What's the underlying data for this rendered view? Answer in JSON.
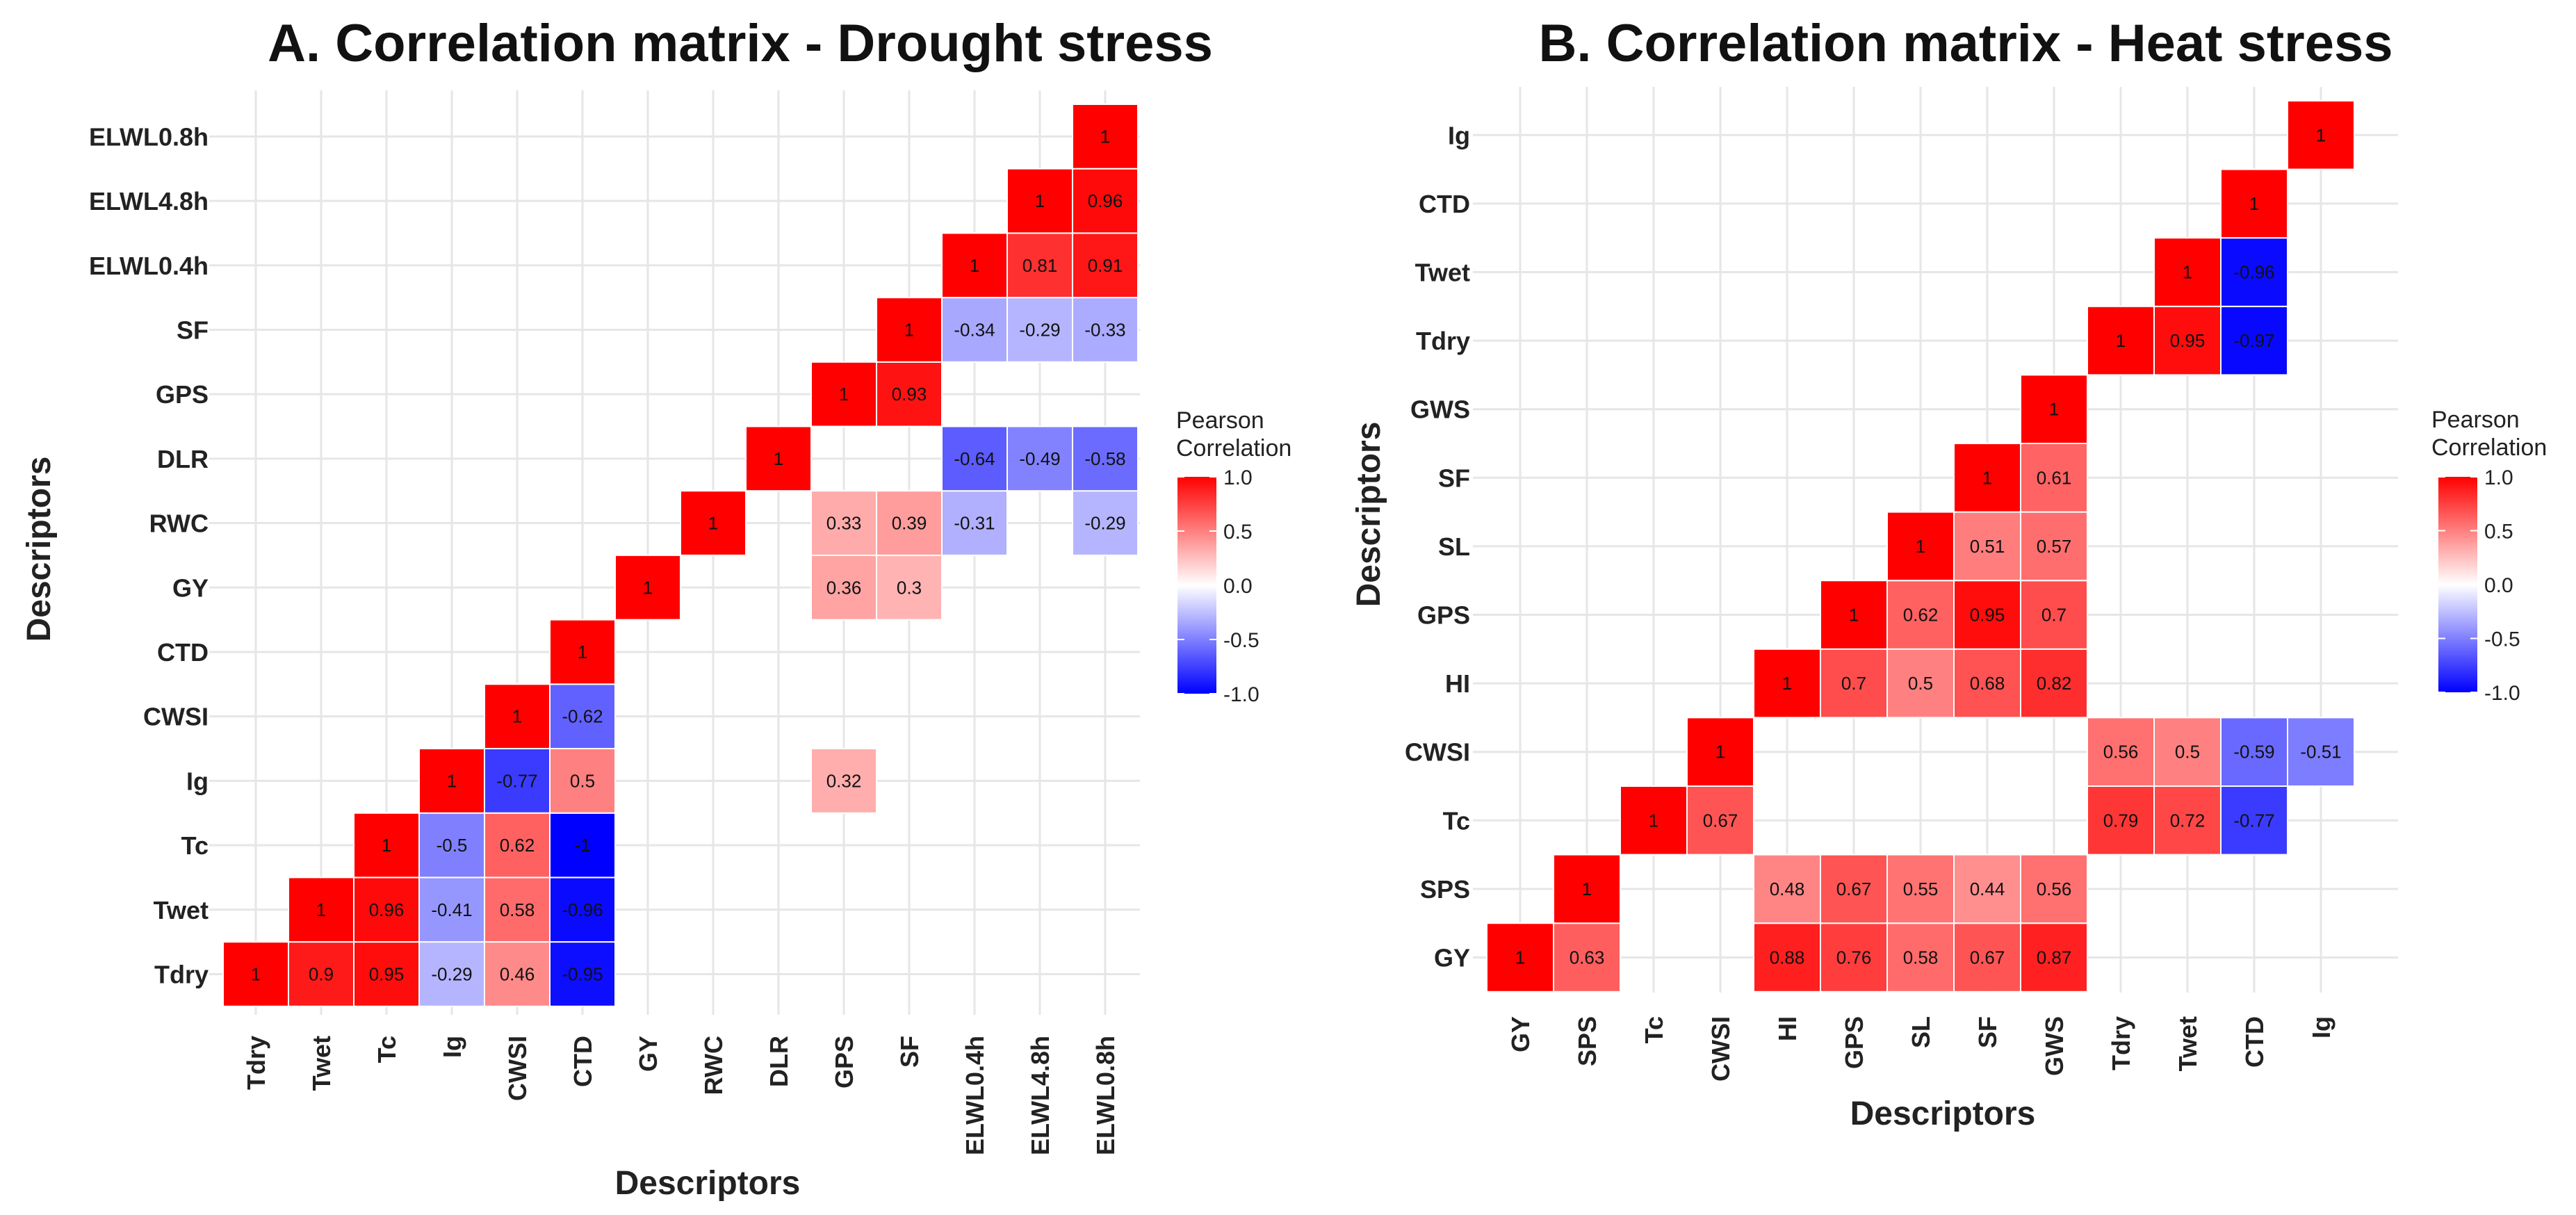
{
  "chart_data": [
    {
      "type": "heatmap",
      "title": "A. Correlation matrix - Drought stress",
      "xlabel": "Descriptors",
      "ylabel": "Descriptors",
      "legend": {
        "title_line1": "Pearson",
        "title_line2": "Correlation",
        "ticks": [
          1.0,
          0.5,
          0.0,
          -0.5,
          -1.0
        ],
        "tick_labels": [
          "1.0",
          "0.5",
          "0.0",
          "-0.5",
          "-1.0"
        ],
        "placement": "right"
      },
      "color_scale": {
        "low": "#0000ff",
        "mid": "#ffffff",
        "high": "#ff0000",
        "range": [
          -1,
          1
        ]
      },
      "variables": [
        "Tdry",
        "Twet",
        "Tc",
        "Ig",
        "CWSI",
        "CTD",
        "GY",
        "RWC",
        "DLR",
        "GPS",
        "SF",
        "ELWL0.4h",
        "ELWL4.8h",
        "ELWL0.8h"
      ],
      "cells": [
        {
          "x": "Tdry",
          "y": "Tdry",
          "value": 1,
          "label": "1"
        },
        {
          "x": "Twet",
          "y": "Tdry",
          "value": 0.9,
          "label": "0.9"
        },
        {
          "x": "Tc",
          "y": "Tdry",
          "value": 0.95,
          "label": "0.95"
        },
        {
          "x": "Ig",
          "y": "Tdry",
          "value": -0.29,
          "label": "-0.29"
        },
        {
          "x": "CWSI",
          "y": "Tdry",
          "value": 0.46,
          "label": "0.46"
        },
        {
          "x": "CTD",
          "y": "Tdry",
          "value": -0.95,
          "label": "-0.95"
        },
        {
          "x": "Twet",
          "y": "Twet",
          "value": 1,
          "label": "1"
        },
        {
          "x": "Tc",
          "y": "Twet",
          "value": 0.96,
          "label": "0.96"
        },
        {
          "x": "Ig",
          "y": "Twet",
          "value": -0.41,
          "label": "-0.41"
        },
        {
          "x": "CWSI",
          "y": "Twet",
          "value": 0.58,
          "label": "0.58"
        },
        {
          "x": "CTD",
          "y": "Twet",
          "value": -0.96,
          "label": "-0.96"
        },
        {
          "x": "Tc",
          "y": "Tc",
          "value": 1,
          "label": "1"
        },
        {
          "x": "Ig",
          "y": "Tc",
          "value": -0.5,
          "label": "-0.5"
        },
        {
          "x": "CWSI",
          "y": "Tc",
          "value": 0.62,
          "label": "0.62"
        },
        {
          "x": "CTD",
          "y": "Tc",
          "value": -1,
          "label": "-1"
        },
        {
          "x": "Ig",
          "y": "Ig",
          "value": 1,
          "label": "1"
        },
        {
          "x": "CWSI",
          "y": "Ig",
          "value": -0.77,
          "label": "-0.77"
        },
        {
          "x": "CTD",
          "y": "Ig",
          "value": 0.5,
          "label": "0.5"
        },
        {
          "x": "GPS",
          "y": "Ig",
          "value": 0.32,
          "label": "0.32"
        },
        {
          "x": "CWSI",
          "y": "CWSI",
          "value": 1,
          "label": "1"
        },
        {
          "x": "CTD",
          "y": "CWSI",
          "value": -0.62,
          "label": "-0.62"
        },
        {
          "x": "CTD",
          "y": "CTD",
          "value": 1,
          "label": "1"
        },
        {
          "x": "GY",
          "y": "GY",
          "value": 1,
          "label": "1"
        },
        {
          "x": "GPS",
          "y": "GY",
          "value": 0.36,
          "label": "0.36"
        },
        {
          "x": "SF",
          "y": "GY",
          "value": 0.3,
          "label": "0.3"
        },
        {
          "x": "RWC",
          "y": "RWC",
          "value": 1,
          "label": "1"
        },
        {
          "x": "GPS",
          "y": "RWC",
          "value": 0.33,
          "label": "0.33"
        },
        {
          "x": "SF",
          "y": "RWC",
          "value": 0.39,
          "label": "0.39"
        },
        {
          "x": "ELWL0.4h",
          "y": "RWC",
          "value": -0.31,
          "label": "-0.31"
        },
        {
          "x": "ELWL0.8h",
          "y": "RWC",
          "value": -0.29,
          "label": "-0.29"
        },
        {
          "x": "DLR",
          "y": "DLR",
          "value": 1,
          "label": "1"
        },
        {
          "x": "ELWL0.4h",
          "y": "DLR",
          "value": -0.64,
          "label": "-0.64"
        },
        {
          "x": "ELWL4.8h",
          "y": "DLR",
          "value": -0.49,
          "label": "-0.49"
        },
        {
          "x": "ELWL0.8h",
          "y": "DLR",
          "value": -0.58,
          "label": "-0.58"
        },
        {
          "x": "GPS",
          "y": "GPS",
          "value": 1,
          "label": "1"
        },
        {
          "x": "SF",
          "y": "GPS",
          "value": 0.93,
          "label": "0.93"
        },
        {
          "x": "SF",
          "y": "SF",
          "value": 1,
          "label": "1"
        },
        {
          "x": "ELWL0.4h",
          "y": "SF",
          "value": -0.34,
          "label": "-0.34"
        },
        {
          "x": "ELWL4.8h",
          "y": "SF",
          "value": -0.29,
          "label": "-0.29"
        },
        {
          "x": "ELWL0.8h",
          "y": "SF",
          "value": -0.33,
          "label": "-0.33"
        },
        {
          "x": "ELWL0.4h",
          "y": "ELWL0.4h",
          "value": 1,
          "label": "1"
        },
        {
          "x": "ELWL4.8h",
          "y": "ELWL0.4h",
          "value": 0.81,
          "label": "0.81"
        },
        {
          "x": "ELWL0.8h",
          "y": "ELWL0.4h",
          "value": 0.91,
          "label": "0.91"
        },
        {
          "x": "ELWL4.8h",
          "y": "ELWL4.8h",
          "value": 1,
          "label": "1"
        },
        {
          "x": "ELWL0.8h",
          "y": "ELWL4.8h",
          "value": 0.96,
          "label": "0.96"
        },
        {
          "x": "ELWL0.8h",
          "y": "ELWL0.8h",
          "value": 1,
          "label": "1"
        }
      ]
    },
    {
      "type": "heatmap",
      "title": "B. Correlation matrix - Heat stress",
      "xlabel": "Descriptors",
      "ylabel": "Descriptors",
      "legend": {
        "title_line1": "Pearson",
        "title_line2": "Correlation",
        "ticks": [
          1.0,
          0.5,
          0.0,
          -0.5,
          -1.0
        ],
        "tick_labels": [
          "1.0",
          "0.5",
          "0.0",
          "-0.5",
          "-1.0"
        ],
        "placement": "right"
      },
      "color_scale": {
        "low": "#0000ff",
        "mid": "#ffffff",
        "high": "#ff0000",
        "range": [
          -1,
          1
        ]
      },
      "variables": [
        "GY",
        "SPS",
        "Tc",
        "CWSI",
        "HI",
        "GPS",
        "SL",
        "SF",
        "GWS",
        "Tdry",
        "Twet",
        "CTD",
        "Ig"
      ],
      "cells": [
        {
          "x": "GY",
          "y": "GY",
          "value": 1,
          "label": "1"
        },
        {
          "x": "SPS",
          "y": "GY",
          "value": 0.63,
          "label": "0.63"
        },
        {
          "x": "HI",
          "y": "GY",
          "value": 0.88,
          "label": "0.88"
        },
        {
          "x": "GPS",
          "y": "GY",
          "value": 0.76,
          "label": "0.76"
        },
        {
          "x": "SL",
          "y": "GY",
          "value": 0.58,
          "label": "0.58"
        },
        {
          "x": "SF",
          "y": "GY",
          "value": 0.67,
          "label": "0.67"
        },
        {
          "x": "GWS",
          "y": "GY",
          "value": 0.87,
          "label": "0.87"
        },
        {
          "x": "SPS",
          "y": "SPS",
          "value": 1,
          "label": "1"
        },
        {
          "x": "HI",
          "y": "SPS",
          "value": 0.48,
          "label": "0.48"
        },
        {
          "x": "GPS",
          "y": "SPS",
          "value": 0.67,
          "label": "0.67"
        },
        {
          "x": "SL",
          "y": "SPS",
          "value": 0.55,
          "label": "0.55"
        },
        {
          "x": "SF",
          "y": "SPS",
          "value": 0.44,
          "label": "0.44"
        },
        {
          "x": "GWS",
          "y": "SPS",
          "value": 0.56,
          "label": "0.56"
        },
        {
          "x": "Tc",
          "y": "Tc",
          "value": 1,
          "label": "1"
        },
        {
          "x": "CWSI",
          "y": "Tc",
          "value": 0.67,
          "label": "0.67"
        },
        {
          "x": "Tdry",
          "y": "Tc",
          "value": 0.79,
          "label": "0.79"
        },
        {
          "x": "Twet",
          "y": "Tc",
          "value": 0.72,
          "label": "0.72"
        },
        {
          "x": "CTD",
          "y": "Tc",
          "value": -0.77,
          "label": "-0.77"
        },
        {
          "x": "CWSI",
          "y": "CWSI",
          "value": 1,
          "label": "1"
        },
        {
          "x": "Tdry",
          "y": "CWSI",
          "value": 0.56,
          "label": "0.56"
        },
        {
          "x": "Twet",
          "y": "CWSI",
          "value": 0.5,
          "label": "0.5"
        },
        {
          "x": "CTD",
          "y": "CWSI",
          "value": -0.59,
          "label": "-0.59"
        },
        {
          "x": "Ig",
          "y": "CWSI",
          "value": -0.51,
          "label": "-0.51"
        },
        {
          "x": "HI",
          "y": "HI",
          "value": 1,
          "label": "1"
        },
        {
          "x": "GPS",
          "y": "HI",
          "value": 0.7,
          "label": "0.7"
        },
        {
          "x": "SL",
          "y": "HI",
          "value": 0.5,
          "label": "0.5"
        },
        {
          "x": "SF",
          "y": "HI",
          "value": 0.68,
          "label": "0.68"
        },
        {
          "x": "GWS",
          "y": "HI",
          "value": 0.82,
          "label": "0.82"
        },
        {
          "x": "GPS",
          "y": "GPS",
          "value": 1,
          "label": "1"
        },
        {
          "x": "SL",
          "y": "GPS",
          "value": 0.62,
          "label": "0.62"
        },
        {
          "x": "SF",
          "y": "GPS",
          "value": 0.95,
          "label": "0.95"
        },
        {
          "x": "GWS",
          "y": "GPS",
          "value": 0.7,
          "label": "0.7"
        },
        {
          "x": "SL",
          "y": "SL",
          "value": 1,
          "label": "1"
        },
        {
          "x": "SF",
          "y": "SL",
          "value": 0.51,
          "label": "0.51"
        },
        {
          "x": "GWS",
          "y": "SL",
          "value": 0.57,
          "label": "0.57"
        },
        {
          "x": "SF",
          "y": "SF",
          "value": 1,
          "label": "1"
        },
        {
          "x": "GWS",
          "y": "SF",
          "value": 0.61,
          "label": "0.61"
        },
        {
          "x": "GWS",
          "y": "GWS",
          "value": 1,
          "label": "1"
        },
        {
          "x": "Tdry",
          "y": "Tdry",
          "value": 1,
          "label": "1"
        },
        {
          "x": "Twet",
          "y": "Tdry",
          "value": 0.95,
          "label": "0.95"
        },
        {
          "x": "CTD",
          "y": "Tdry",
          "value": -0.97,
          "label": "-0.97"
        },
        {
          "x": "Twet",
          "y": "Twet",
          "value": 1,
          "label": "1"
        },
        {
          "x": "CTD",
          "y": "Twet",
          "value": -0.96,
          "label": "-0.96"
        },
        {
          "x": "CTD",
          "y": "CTD",
          "value": 1,
          "label": "1"
        },
        {
          "x": "Ig",
          "y": "Ig",
          "value": 1,
          "label": "1"
        }
      ]
    }
  ]
}
